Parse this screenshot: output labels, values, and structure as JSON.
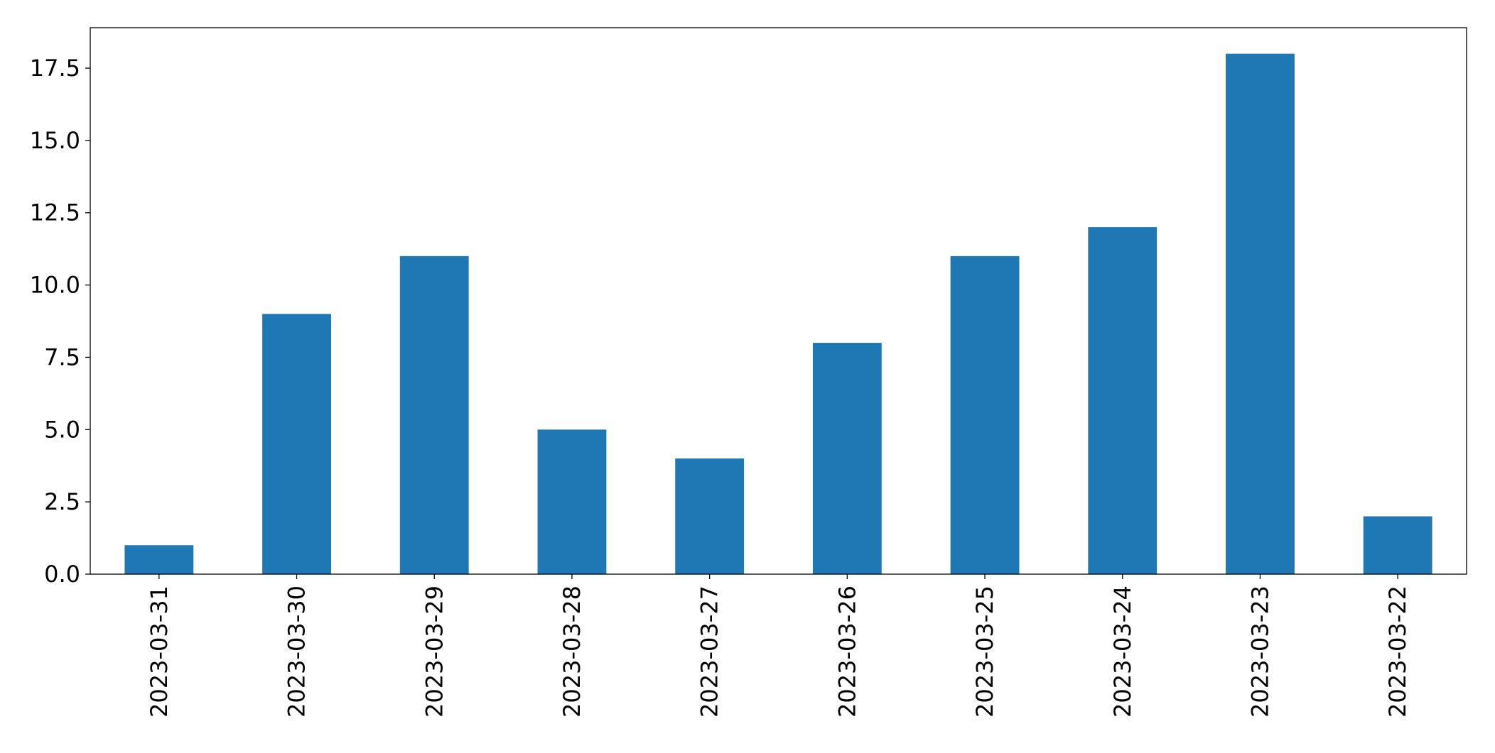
{
  "chart_data": {
    "type": "bar",
    "categories": [
      "2023-03-31",
      "2023-03-30",
      "2023-03-29",
      "2023-03-28",
      "2023-03-27",
      "2023-03-26",
      "2023-03-25",
      "2023-03-24",
      "2023-03-23",
      "2023-03-22"
    ],
    "values": [
      1,
      9,
      11,
      5,
      4,
      8,
      11,
      12,
      18,
      2
    ],
    "color": "#1f77b4",
    "ylim": [
      0,
      18.9
    ],
    "yticks": [
      {
        "value": 0,
        "label": "0.0"
      },
      2.5,
      {
        "value": 5,
        "label": "5.0"
      },
      7.5,
      {
        "value": 10,
        "label": "10.0"
      },
      12.5,
      {
        "value": 15,
        "label": "15.0"
      },
      17.5
    ],
    "grid": false
  }
}
